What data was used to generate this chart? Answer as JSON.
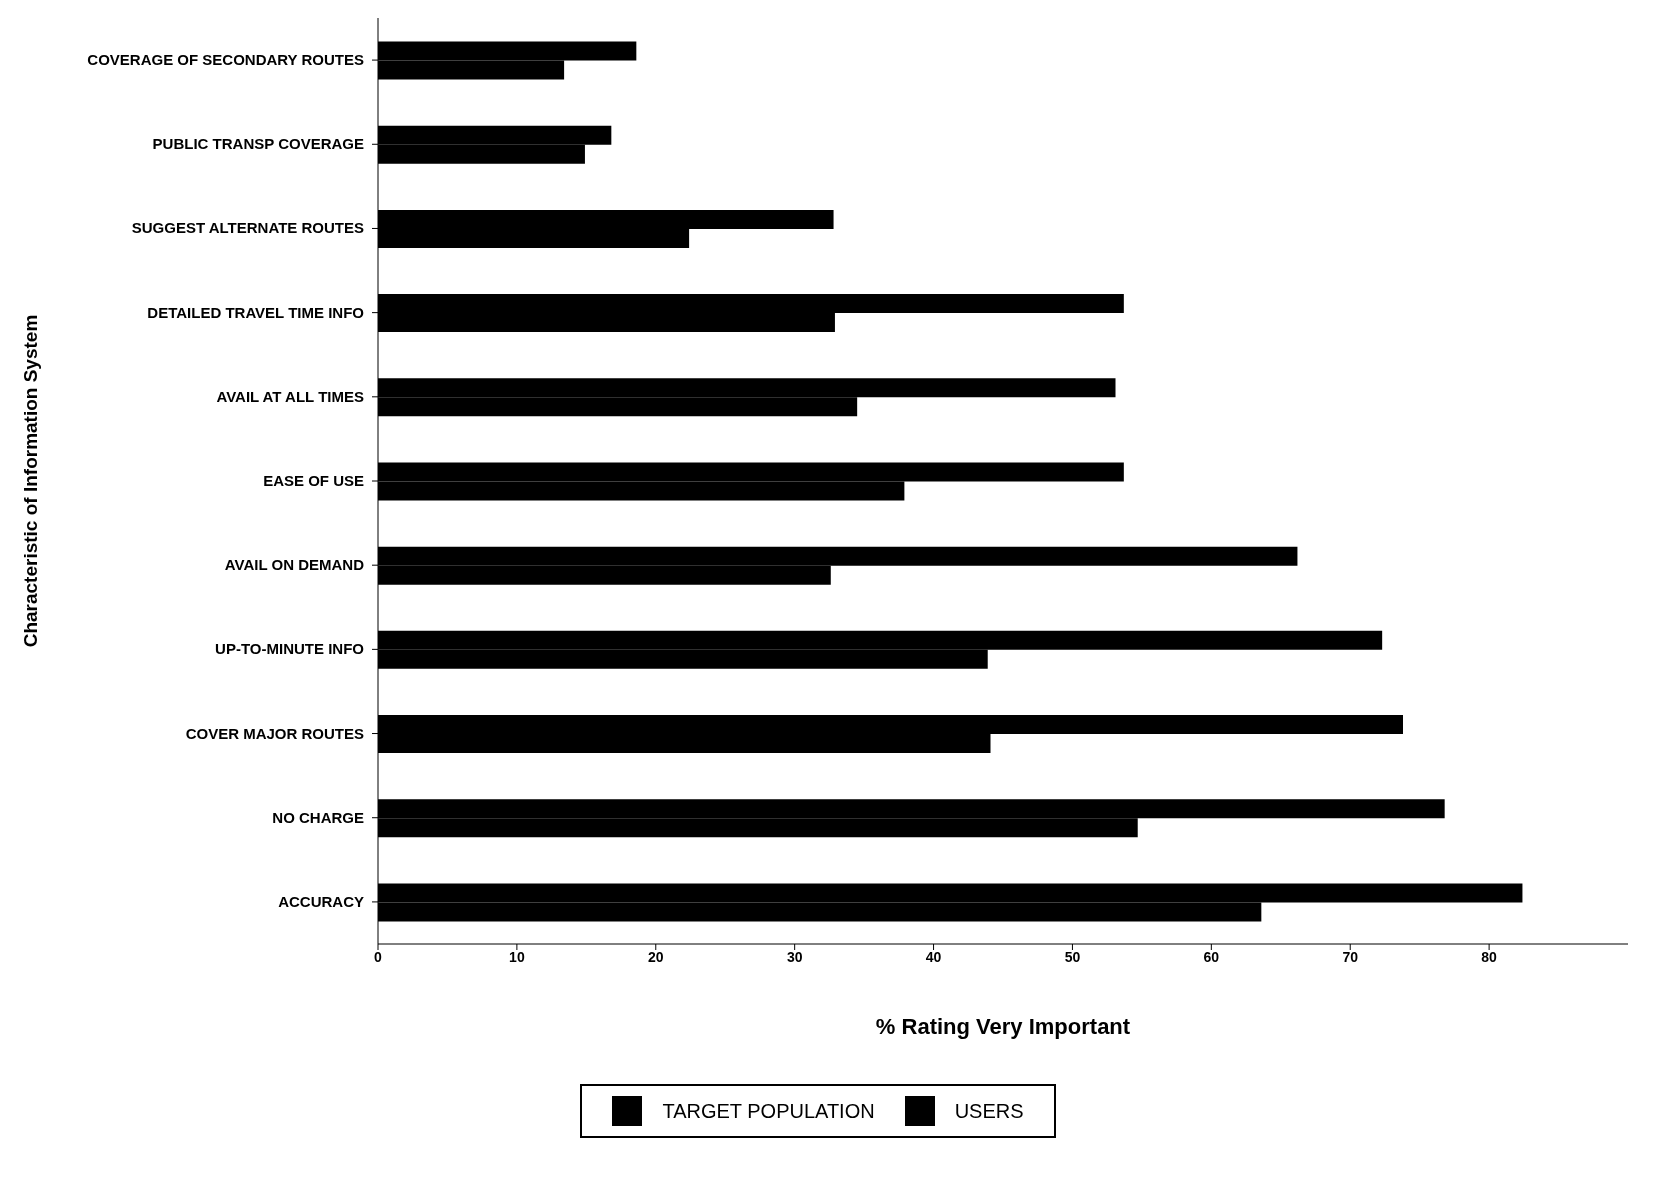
{
  "chart_data": {
    "type": "bar",
    "orientation": "horizontal",
    "xlabel": "% Rating Very Important",
    "ylabel": "Characteristic of Information System",
    "categories": [
      "COVERAGE OF SECONDARY ROUTES",
      "PUBLIC TRANSP COVERAGE",
      "SUGGEST ALTERNATE ROUTES",
      "DETAILED TRAVEL TIME INFO",
      "AVAIL AT ALL TIMES",
      "EASE OF USE",
      "AVAIL ON DEMAND",
      "UP-TO-MINUTE INFO",
      "COVER MAJOR ROUTES",
      "NO CHARGE",
      "ACCURACY"
    ],
    "series": [
      {
        "name": "TARGET POPULATION",
        "color": "#000000",
        "values": [
          18.6,
          16.8,
          32.8,
          53.7,
          53.1,
          53.7,
          66.2,
          72.3,
          73.8,
          76.8,
          82.4
        ]
      },
      {
        "name": "USERS",
        "color": "#000000",
        "values": [
          13.4,
          14.9,
          22.4,
          32.9,
          34.5,
          37.9,
          32.6,
          43.9,
          44.1,
          54.7,
          63.6
        ]
      }
    ],
    "xlim": [
      0,
      90
    ],
    "xticks": [
      0,
      10,
      20,
      30,
      40,
      50,
      60,
      70,
      80
    ],
    "grid": false,
    "legend": "bottom"
  }
}
